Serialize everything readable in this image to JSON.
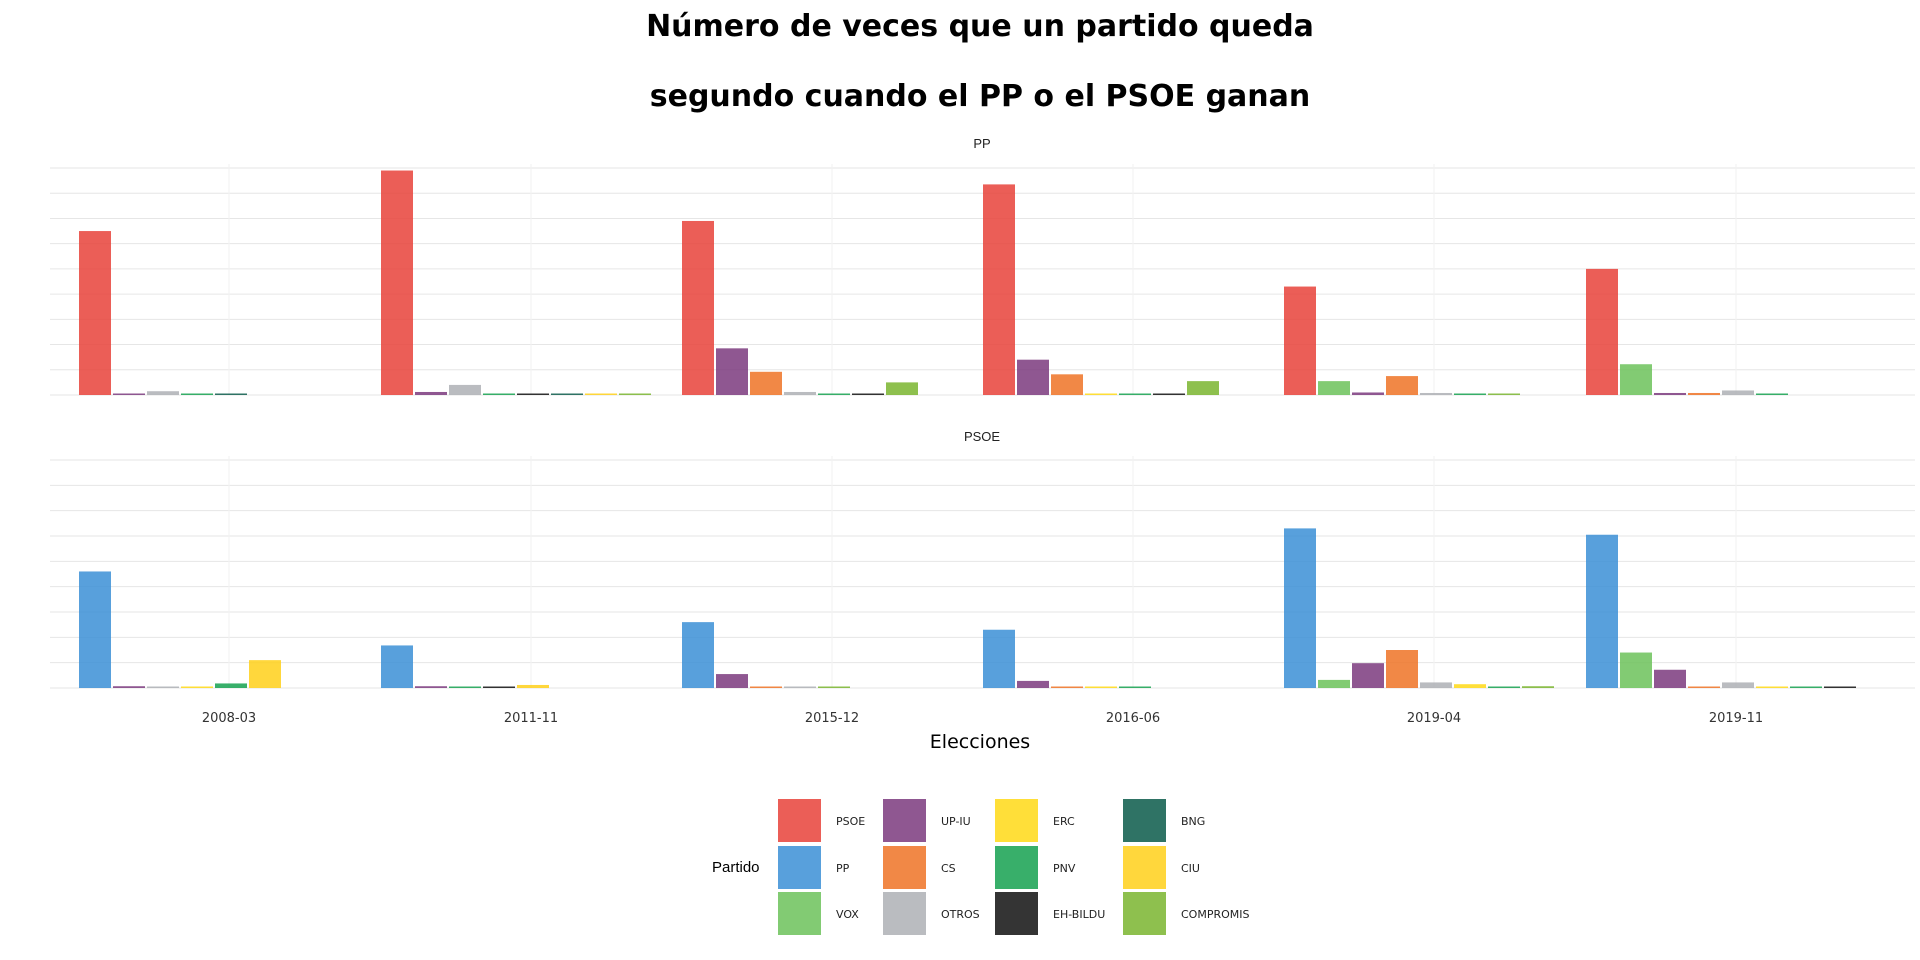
{
  "chart_data": {
    "type": "bar",
    "title_lines": [
      "Número de veces que un partido queda",
      "segundo cuando el PP o el PSOE ganan"
    ],
    "xlabel": "Elecciones",
    "ylabel": "",
    "categories": [
      "2008-03",
      "2011-11",
      "2015-12",
      "2016-06",
      "2019-04",
      "2019-11"
    ],
    "legend_title": "Partido",
    "legend_position": "bottom",
    "grid": true,
    "ylim": [
      0,
      9
    ],
    "parties": [
      {
        "name": "PSOE",
        "color": "#e8423a"
      },
      {
        "name": "PP",
        "color": "#3b8fd6"
      },
      {
        "name": "VOX",
        "color": "#6cc25a"
      },
      {
        "name": "UP-IU",
        "color": "#7b3a7e"
      },
      {
        "name": "CS",
        "color": "#ee7326"
      },
      {
        "name": "OTROS",
        "color": "#aeb0b5"
      },
      {
        "name": "ERC",
        "color": "#ffd916"
      },
      {
        "name": "PNV",
        "color": "#15a150"
      },
      {
        "name": "EH-BILDU",
        "color": "#111111"
      },
      {
        "name": "BNG",
        "color": "#0b5a4a"
      },
      {
        "name": "CIU",
        "color": "#ffd01a"
      },
      {
        "name": "COMPROMIS",
        "color": "#7ab52f"
      }
    ],
    "facets": [
      {
        "label": "PP",
        "groups": [
          {
            "category": "2008-03",
            "bars": [
              {
                "party": "PSOE",
                "value": 6.5
              },
              {
                "party": "UP-IU",
                "value": 0.05
              },
              {
                "party": "OTROS",
                "value": 0.15
              },
              {
                "party": "PNV",
                "value": 0.05
              },
              {
                "party": "BNG",
                "value": 0.05
              }
            ]
          },
          {
            "category": "2011-11",
            "bars": [
              {
                "party": "PSOE",
                "value": 8.9
              },
              {
                "party": "UP-IU",
                "value": 0.12
              },
              {
                "party": "OTROS",
                "value": 0.4
              },
              {
                "party": "PNV",
                "value": 0.05
              },
              {
                "party": "EH-BILDU",
                "value": 0.05
              },
              {
                "party": "BNG",
                "value": 0.05
              },
              {
                "party": "CIU",
                "value": 0.05
              },
              {
                "party": "COMPROMIS",
                "value": 0.05
              }
            ]
          },
          {
            "category": "2015-12",
            "bars": [
              {
                "party": "PSOE",
                "value": 6.9
              },
              {
                "party": "UP-IU",
                "value": 1.85
              },
              {
                "party": "CS",
                "value": 0.92
              },
              {
                "party": "OTROS",
                "value": 0.12
              },
              {
                "party": "PNV",
                "value": 0.05
              },
              {
                "party": "EH-BILDU",
                "value": 0.05
              },
              {
                "party": "COMPROMIS",
                "value": 0.5
              }
            ]
          },
          {
            "category": "2016-06",
            "bars": [
              {
                "party": "PSOE",
                "value": 8.35
              },
              {
                "party": "UP-IU",
                "value": 1.4
              },
              {
                "party": "CS",
                "value": 0.82
              },
              {
                "party": "ERC",
                "value": 0.05
              },
              {
                "party": "PNV",
                "value": 0.05
              },
              {
                "party": "EH-BILDU",
                "value": 0.05
              },
              {
                "party": "COMPROMIS",
                "value": 0.55
              }
            ]
          },
          {
            "category": "2019-04",
            "bars": [
              {
                "party": "PSOE",
                "value": 4.3
              },
              {
                "party": "VOX",
                "value": 0.55
              },
              {
                "party": "UP-IU",
                "value": 0.1
              },
              {
                "party": "CS",
                "value": 0.75
              },
              {
                "party": "OTROS",
                "value": 0.08
              },
              {
                "party": "PNV",
                "value": 0.05
              },
              {
                "party": "COMPROMIS",
                "value": 0.05
              }
            ]
          },
          {
            "category": "2019-11",
            "bars": [
              {
                "party": "PSOE",
                "value": 5.0
              },
              {
                "party": "VOX",
                "value": 1.22
              },
              {
                "party": "UP-IU",
                "value": 0.08
              },
              {
                "party": "CS",
                "value": 0.08
              },
              {
                "party": "OTROS",
                "value": 0.18
              },
              {
                "party": "PNV",
                "value": 0.05
              }
            ]
          }
        ]
      },
      {
        "label": "PSOE",
        "groups": [
          {
            "category": "2008-03",
            "bars": [
              {
                "party": "PP",
                "value": 4.6
              },
              {
                "party": "UP-IU",
                "value": 0.07
              },
              {
                "party": "OTROS",
                "value": 0.05
              },
              {
                "party": "ERC",
                "value": 0.05
              },
              {
                "party": "PNV",
                "value": 0.18
              },
              {
                "party": "CIU",
                "value": 1.1
              }
            ]
          },
          {
            "category": "2011-11",
            "bars": [
              {
                "party": "PP",
                "value": 1.68
              },
              {
                "party": "UP-IU",
                "value": 0.07
              },
              {
                "party": "PNV",
                "value": 0.05
              },
              {
                "party": "EH-BILDU",
                "value": 0.05
              },
              {
                "party": "CIU",
                "value": 0.12
              }
            ]
          },
          {
            "category": "2015-12",
            "bars": [
              {
                "party": "PP",
                "value": 2.6
              },
              {
                "party": "UP-IU",
                "value": 0.55
              },
              {
                "party": "CS",
                "value": 0.05
              },
              {
                "party": "OTROS",
                "value": 0.05
              },
              {
                "party": "COMPROMIS",
                "value": 0.05
              }
            ]
          },
          {
            "category": "2016-06",
            "bars": [
              {
                "party": "PP",
                "value": 2.3
              },
              {
                "party": "UP-IU",
                "value": 0.28
              },
              {
                "party": "CS",
                "value": 0.05
              },
              {
                "party": "ERC",
                "value": 0.05
              },
              {
                "party": "PNV",
                "value": 0.05
              }
            ]
          },
          {
            "category": "2019-04",
            "bars": [
              {
                "party": "PP",
                "value": 6.3
              },
              {
                "party": "VOX",
                "value": 0.32
              },
              {
                "party": "UP-IU",
                "value": 0.98
              },
              {
                "party": "CS",
                "value": 1.5
              },
              {
                "party": "OTROS",
                "value": 0.22
              },
              {
                "party": "ERC",
                "value": 0.15
              },
              {
                "party": "PNV",
                "value": 0.05
              },
              {
                "party": "COMPROMIS",
                "value": 0.07
              }
            ]
          },
          {
            "category": "2019-11",
            "bars": [
              {
                "party": "PP",
                "value": 6.05
              },
              {
                "party": "VOX",
                "value": 1.4
              },
              {
                "party": "UP-IU",
                "value": 0.72
              },
              {
                "party": "CS",
                "value": 0.05
              },
              {
                "party": "OTROS",
                "value": 0.22
              },
              {
                "party": "ERC",
                "value": 0.05
              },
              {
                "party": "PNV",
                "value": 0.05
              },
              {
                "party": "EH-BILDU",
                "value": 0.05
              }
            ]
          }
        ]
      }
    ]
  }
}
